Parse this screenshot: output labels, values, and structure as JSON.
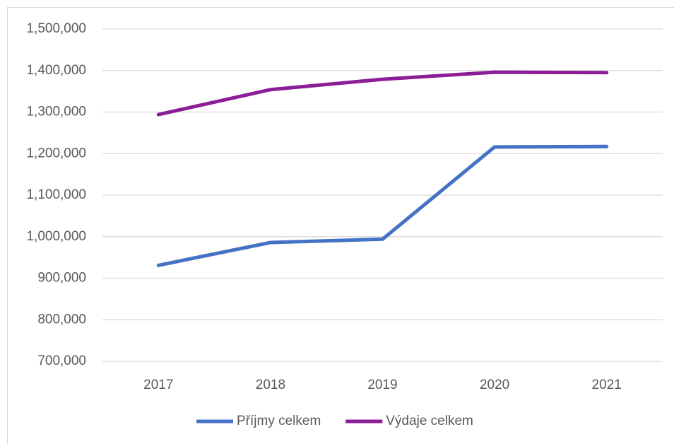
{
  "chart_data": {
    "type": "line",
    "categories": [
      "2017",
      "2018",
      "2019",
      "2020",
      "2021"
    ],
    "series": [
      {
        "name": "Příjmy celkem",
        "color": "#4472c4",
        "values": [
          931000,
          986000,
          994000,
          1216000,
          1217000
        ]
      },
      {
        "name": "Výdaje celkem",
        "color": "#8b1e96",
        "values": [
          1294000,
          1354000,
          1379000,
          1396000,
          1395000
        ]
      }
    ],
    "ylim": [
      700000,
      1500000
    ],
    "yticks": [
      {
        "value": 700000,
        "label": "700,000"
      },
      {
        "value": 800000,
        "label": "800,000"
      },
      {
        "value": 900000,
        "label": "900,000"
      },
      {
        "value": 1000000,
        "label": "1,000,000"
      },
      {
        "value": 1100000,
        "label": "1,100,000"
      },
      {
        "value": 1200000,
        "label": "1,200,000"
      },
      {
        "value": 1300000,
        "label": "1,300,000"
      },
      {
        "value": 1400000,
        "label": "1,400,000"
      },
      {
        "value": 1500000,
        "label": "1,500,000"
      }
    ],
    "grid": true,
    "legend": "bottom"
  }
}
